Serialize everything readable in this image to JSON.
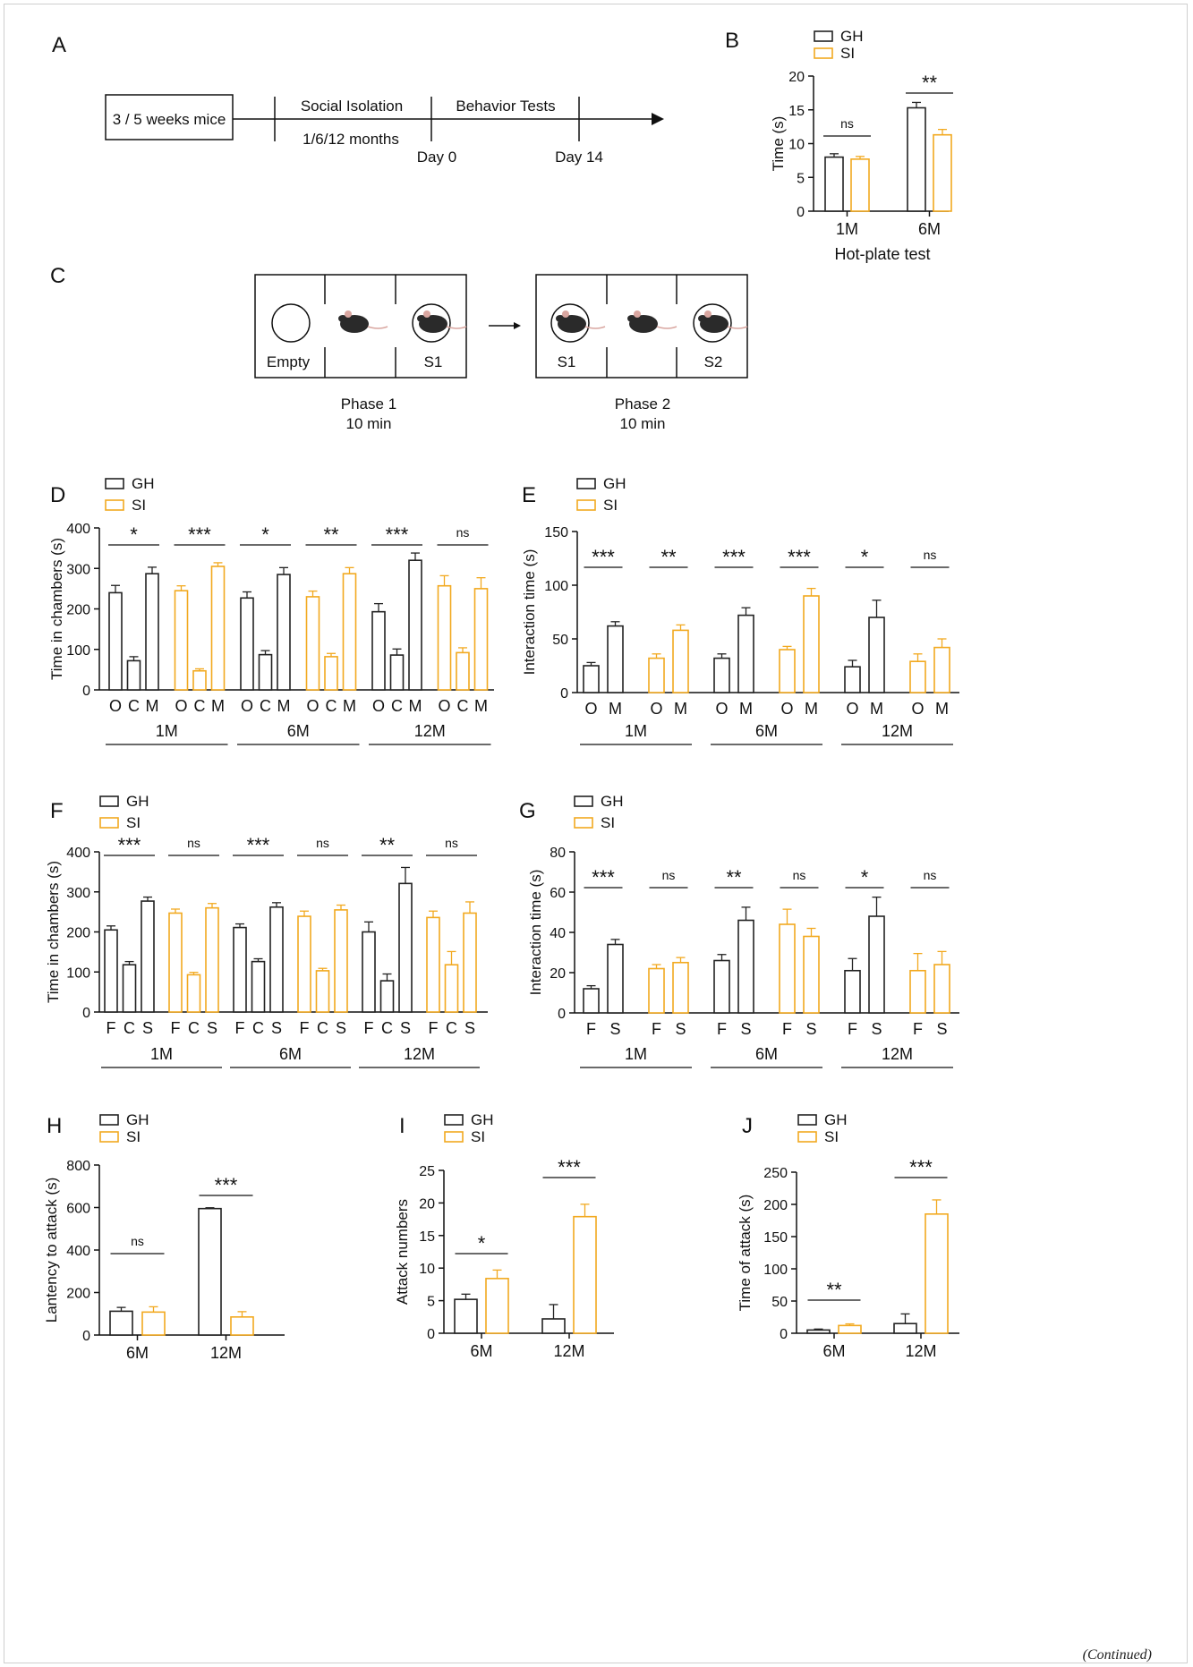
{
  "colors": {
    "gh": "#222222",
    "si": "#f2a91f",
    "axis": "#111111"
  },
  "continued": "(Continued)",
  "panel_a": {
    "letter": "A",
    "box_label": "3 / 5 weeks mice",
    "segment1": "Social Isolation",
    "segment1_sub": "1/6/12 months",
    "segment2": "Behavior Tests",
    "tick1": "Day 0",
    "tick2": "Day 14"
  },
  "panel_c": {
    "letter": "C",
    "phase1_box": [
      "Empty",
      "S1"
    ],
    "phase2_box": [
      "S1",
      "S2"
    ],
    "phase1_label": "Phase 1",
    "phase1_time": "10 min",
    "phase2_label": "Phase 2",
    "phase2_time": "10 min"
  },
  "chart_data": [
    {
      "panel": "B",
      "type": "bar",
      "ylabel": "Time (s)",
      "xlabel": "Hot-plate test",
      "ylim": [
        0,
        20
      ],
      "yticks": [
        0,
        5,
        10,
        15,
        20
      ],
      "legend": [
        "GH",
        "SI"
      ],
      "groups": [
        "1M",
        "6M"
      ],
      "bars": [
        {
          "group": "1M",
          "series": "GH",
          "value": 8.0,
          "err": 0.5
        },
        {
          "group": "1M",
          "series": "SI",
          "value": 7.7,
          "err": 0.4
        },
        {
          "group": "6M",
          "series": "GH",
          "value": 15.3,
          "err": 0.8
        },
        {
          "group": "6M",
          "series": "SI",
          "value": 11.3,
          "err": 0.8
        }
      ],
      "significance": [
        {
          "group": "1M",
          "label": "ns"
        },
        {
          "group": "6M",
          "label": "**"
        }
      ]
    },
    {
      "panel": "D",
      "type": "bar",
      "ylabel": "Time in chambers (s)",
      "ylim": [
        0,
        400
      ],
      "yticks": [
        0,
        100,
        200,
        300,
        400
      ],
      "legend": [
        "GH",
        "SI"
      ],
      "categories": [
        "O",
        "C",
        "M"
      ],
      "ages": [
        "1M",
        "6M",
        "12M"
      ],
      "clusters": [
        {
          "age": "1M",
          "series": "GH",
          "values": [
            240,
            72,
            287
          ],
          "errs": [
            18,
            10,
            16
          ],
          "sig": "*"
        },
        {
          "age": "1M",
          "series": "SI",
          "values": [
            245,
            47,
            305
          ],
          "errs": [
            12,
            5,
            9
          ],
          "sig": "***"
        },
        {
          "age": "6M",
          "series": "GH",
          "values": [
            227,
            87,
            285
          ],
          "errs": [
            15,
            10,
            17
          ],
          "sig": "*"
        },
        {
          "age": "6M",
          "series": "SI",
          "values": [
            230,
            82,
            287
          ],
          "errs": [
            14,
            8,
            15
          ],
          "sig": "**"
        },
        {
          "age": "12M",
          "series": "GH",
          "values": [
            193,
            86,
            320
          ],
          "errs": [
            20,
            15,
            18
          ],
          "sig": "***"
        },
        {
          "age": "12M",
          "series": "SI",
          "values": [
            257,
            92,
            250
          ],
          "errs": [
            25,
            12,
            27
          ],
          "sig": "ns"
        }
      ]
    },
    {
      "panel": "E",
      "type": "bar",
      "ylabel": "Interaction time (s)",
      "ylim": [
        0,
        150
      ],
      "yticks": [
        0,
        50,
        100,
        150
      ],
      "legend": [
        "GH",
        "SI"
      ],
      "categories": [
        "O",
        "M"
      ],
      "ages": [
        "1M",
        "6M",
        "12M"
      ],
      "clusters": [
        {
          "age": "1M",
          "series": "GH",
          "values": [
            25,
            62
          ],
          "errs": [
            3,
            4
          ],
          "sig": "***"
        },
        {
          "age": "1M",
          "series": "SI",
          "values": [
            32,
            58
          ],
          "errs": [
            4,
            5
          ],
          "sig": "**"
        },
        {
          "age": "6M",
          "series": "GH",
          "values": [
            32,
            72
          ],
          "errs": [
            4,
            7
          ],
          "sig": "***"
        },
        {
          "age": "6M",
          "series": "SI",
          "values": [
            40,
            90
          ],
          "errs": [
            3,
            7
          ],
          "sig": "***"
        },
        {
          "age": "12M",
          "series": "GH",
          "values": [
            24,
            70
          ],
          "errs": [
            6,
            16
          ],
          "sig": "*"
        },
        {
          "age": "12M",
          "series": "SI",
          "values": [
            29,
            42
          ],
          "errs": [
            7,
            8
          ],
          "sig": "ns"
        }
      ]
    },
    {
      "panel": "F",
      "type": "bar",
      "ylabel": "Time in chambers (s)",
      "ylim": [
        0,
        400
      ],
      "yticks": [
        0,
        100,
        200,
        300,
        400
      ],
      "legend": [
        "GH",
        "SI"
      ],
      "categories": [
        "F",
        "C",
        "S"
      ],
      "ages": [
        "1M",
        "6M",
        "12M"
      ],
      "clusters": [
        {
          "age": "1M",
          "series": "GH",
          "values": [
            205,
            118,
            277
          ],
          "errs": [
            10,
            8,
            10
          ],
          "sig": "***"
        },
        {
          "age": "1M",
          "series": "SI",
          "values": [
            247,
            93,
            260
          ],
          "errs": [
            10,
            6,
            11
          ],
          "sig": "ns"
        },
        {
          "age": "6M",
          "series": "GH",
          "values": [
            211,
            126,
            262
          ],
          "errs": [
            9,
            7,
            11
          ],
          "sig": "***"
        },
        {
          "age": "6M",
          "series": "SI",
          "values": [
            239,
            103,
            255
          ],
          "errs": [
            13,
            6,
            12
          ],
          "sig": "ns"
        },
        {
          "age": "12M",
          "series": "GH",
          "values": [
            200,
            78,
            321
          ],
          "errs": [
            25,
            17,
            40
          ],
          "sig": "**"
        },
        {
          "age": "12M",
          "series": "SI",
          "values": [
            236,
            118,
            247
          ],
          "errs": [
            16,
            33,
            28
          ],
          "sig": "ns"
        }
      ]
    },
    {
      "panel": "G",
      "type": "bar",
      "ylabel": "Interaction time (s)",
      "ylim": [
        0,
        80
      ],
      "yticks": [
        0,
        20,
        40,
        60,
        80
      ],
      "legend": [
        "GH",
        "SI"
      ],
      "categories": [
        "F",
        "S"
      ],
      "ages": [
        "1M",
        "6M",
        "12M"
      ],
      "clusters": [
        {
          "age": "1M",
          "series": "GH",
          "values": [
            12,
            34
          ],
          "errs": [
            1.5,
            2.5
          ],
          "sig": "***"
        },
        {
          "age": "1M",
          "series": "SI",
          "values": [
            22,
            25
          ],
          "errs": [
            2,
            2.5
          ],
          "sig": "ns"
        },
        {
          "age": "6M",
          "series": "GH",
          "values": [
            26,
            46
          ],
          "errs": [
            3,
            6.5
          ],
          "sig": "**"
        },
        {
          "age": "6M",
          "series": "SI",
          "values": [
            44,
            38
          ],
          "errs": [
            7.5,
            4
          ],
          "sig": "ns"
        },
        {
          "age": "12M",
          "series": "GH",
          "values": [
            21,
            48
          ],
          "errs": [
            6,
            9.5
          ],
          "sig": "*"
        },
        {
          "age": "12M",
          "series": "SI",
          "values": [
            21,
            24
          ],
          "errs": [
            8.5,
            6.5
          ],
          "sig": "ns"
        }
      ]
    },
    {
      "panel": "H",
      "type": "bar",
      "ylabel": "Lantency to attack (s)",
      "ylim": [
        0,
        800
      ],
      "yticks": [
        0,
        200,
        400,
        600,
        800
      ],
      "legend": [
        "GH",
        "SI"
      ],
      "groups": [
        "6M",
        "12M"
      ],
      "bars": [
        {
          "group": "6M",
          "series": "GH",
          "value": 112,
          "err": 18
        },
        {
          "group": "6M",
          "series": "SI",
          "value": 108,
          "err": 25
        },
        {
          "group": "12M",
          "series": "GH",
          "value": 595,
          "err": 4
        },
        {
          "group": "12M",
          "series": "SI",
          "value": 85,
          "err": 25
        }
      ],
      "significance": [
        {
          "group": "6M",
          "label": "ns"
        },
        {
          "group": "12M",
          "label": "***"
        }
      ]
    },
    {
      "panel": "I",
      "type": "bar",
      "ylabel": "Attack numbers",
      "ylim": [
        0,
        25
      ],
      "yticks": [
        0,
        5,
        10,
        15,
        20,
        25
      ],
      "legend": [
        "GH",
        "SI"
      ],
      "groups": [
        "6M",
        "12M"
      ],
      "bars": [
        {
          "group": "6M",
          "series": "GH",
          "value": 5.2,
          "err": 0.8
        },
        {
          "group": "6M",
          "series": "SI",
          "value": 8.4,
          "err": 1.3
        },
        {
          "group": "12M",
          "series": "GH",
          "value": 2.2,
          "err": 2.2
        },
        {
          "group": "12M",
          "series": "SI",
          "value": 17.9,
          "err": 1.9
        }
      ],
      "significance": [
        {
          "group": "6M",
          "label": "*"
        },
        {
          "group": "12M",
          "label": "***"
        }
      ]
    },
    {
      "panel": "J",
      "type": "bar",
      "ylabel": "Time of attack (s)",
      "ylim": [
        0,
        250
      ],
      "yticks": [
        0,
        50,
        100,
        150,
        200,
        250
      ],
      "legend": [
        "GH",
        "SI"
      ],
      "groups": [
        "6M",
        "12M"
      ],
      "bars": [
        {
          "group": "6M",
          "series": "GH",
          "value": 5,
          "err": 1.5
        },
        {
          "group": "6M",
          "series": "SI",
          "value": 12,
          "err": 2.5
        },
        {
          "group": "12M",
          "series": "GH",
          "value": 15,
          "err": 15
        },
        {
          "group": "12M",
          "series": "SI",
          "value": 185,
          "err": 22
        }
      ],
      "significance": [
        {
          "group": "6M",
          "label": "**"
        },
        {
          "group": "12M",
          "label": "***"
        }
      ]
    }
  ]
}
